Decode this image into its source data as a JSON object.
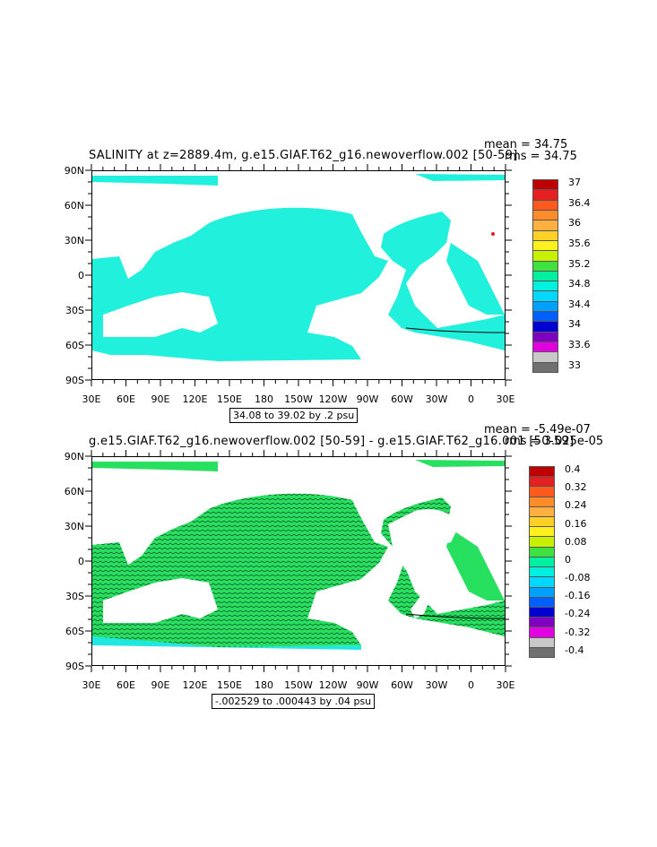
{
  "panel1": {
    "title": "SALINITY at z=2889.4m, g.e15.GIAF.T62_g16.newoverflow.002 [50-59]",
    "mean": "mean = 34.75",
    "rms": "rms = 34.75",
    "contour_info": "34.08 to 39.02 by .2 psu",
    "colorbar": {
      "labels": [
        "37",
        "36.4",
        "36",
        "35.6",
        "35.2",
        "34.8",
        "34.4",
        "34",
        "33.6",
        "33"
      ],
      "colors": [
        "#c00000",
        "#e52020",
        "#ff5a1e",
        "#ff8c28",
        "#ffb040",
        "#ffd028",
        "#fff01e",
        "#c8f000",
        "#40e040",
        "#00f0a0",
        "#00f0e0",
        "#00d8ff",
        "#00a0ff",
        "#0060ff",
        "#0000d0",
        "#8000c0",
        "#e000e0",
        "#c8c8c8",
        "#707070"
      ],
      "map_color": "#20f0dc"
    }
  },
  "panel2": {
    "title": "g.e15.GIAF.T62_g16.newoverflow.002 [50-59] - g.e15.GIAF.T62_g16.001 [50-59]",
    "mean": "mean = -5.49e-07",
    "rms": "rms = 3.025e-05",
    "contour_info": "-.002529 to .000443 by .04 psu",
    "colorbar": {
      "labels": [
        "0.4",
        "0.32",
        "0.24",
        "0.16",
        "0.08",
        "0",
        "-0.08",
        "-0.16",
        "-0.24",
        "-0.32",
        "-0.4"
      ],
      "colors": [
        "#c00000",
        "#e52020",
        "#ff5a1e",
        "#ff8c28",
        "#ffb040",
        "#ffd028",
        "#fff01e",
        "#c8f000",
        "#40e040",
        "#00f0a0",
        "#00f0e0",
        "#00d8ff",
        "#00a0ff",
        "#0060ff",
        "#0000d0",
        "#8000c0",
        "#e000e0",
        "#c8c8c8",
        "#707070"
      ],
      "map_color": "#28e060"
    }
  },
  "axes": {
    "lat_labels": [
      "90N",
      "60N",
      "30N",
      "0",
      "30S",
      "60S",
      "90S"
    ],
    "lon_labels": [
      "30E",
      "60E",
      "90E",
      "120E",
      "150E",
      "180",
      "150W",
      "120W",
      "90W",
      "60W",
      "30W",
      "0",
      "30E"
    ]
  }
}
